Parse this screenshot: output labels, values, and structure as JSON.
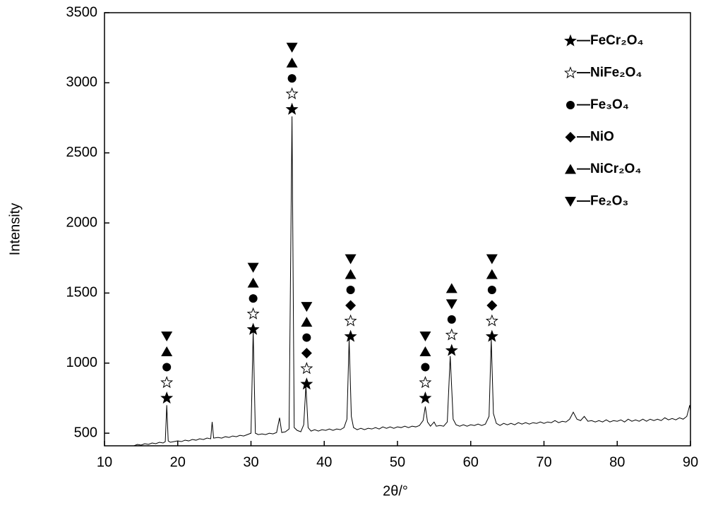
{
  "chart_data": {
    "type": "line",
    "x_label": "2θ/°",
    "y_label": "Intensity",
    "xlim": [
      10,
      90
    ],
    "xticks": [
      10,
      20,
      30,
      40,
      50,
      60,
      70,
      80,
      90
    ],
    "ylim": [
      410,
      3500
    ],
    "yticks": [
      500,
      1000,
      1500,
      2000,
      2500,
      3000,
      3500
    ],
    "color": "#000000",
    "x": [
      14,
      14.5,
      15,
      15.5,
      16,
      16.5,
      17,
      17.5,
      18,
      18.3,
      18.5,
      18.7,
      19,
      19.5,
      20,
      20.5,
      21,
      21.5,
      22,
      22.5,
      23,
      23.5,
      24,
      24.5,
      24.7,
      24.9,
      25.5,
      26,
      26.5,
      27,
      27.5,
      28,
      28.5,
      29,
      29.5,
      30,
      30.3,
      30.6,
      31,
      31.5,
      32,
      32.5,
      33,
      33.5,
      33.9,
      34.2,
      34.7,
      35.2,
      35.6,
      35.9,
      36.3,
      36.8,
      37.2,
      37.5,
      37.8,
      38.2,
      38.7,
      39.2,
      39.7,
      40.2,
      40.7,
      41.2,
      41.7,
      42.2,
      42.7,
      43.1,
      43.4,
      43.7,
      44,
      44.5,
      45,
      45.5,
      46,
      46.5,
      47,
      47.5,
      48,
      48.5,
      49,
      49.5,
      50,
      50.5,
      51,
      51.5,
      52,
      52.5,
      53,
      53.5,
      53.8,
      54.1,
      54.5,
      55,
      55.3,
      55.8,
      56.3,
      56.8,
      57.2,
      57.6,
      58,
      58.5,
      59,
      59.5,
      60,
      60.5,
      61,
      61.5,
      62,
      62.5,
      62.8,
      63.1,
      63.5,
      64,
      64.5,
      65,
      65.5,
      66,
      66.5,
      67,
      67.5,
      68,
      68.5,
      69,
      69.5,
      70,
      70.5,
      71,
      71.5,
      72,
      72.5,
      73,
      73.5,
      74,
      74.5,
      75,
      75.5,
      76,
      76.5,
      77,
      77.5,
      78,
      78.5,
      79,
      79.5,
      80,
      80.5,
      81,
      81.5,
      82,
      82.5,
      83,
      83.5,
      84,
      84.5,
      85,
      85.5,
      86,
      86.5,
      87,
      87.5,
      88,
      88.5,
      89,
      89.5,
      89.9,
      90
    ],
    "values": [
      410,
      420,
      415,
      425,
      420,
      430,
      425,
      435,
      430,
      440,
      700,
      445,
      435,
      440,
      445,
      440,
      450,
      445,
      455,
      450,
      460,
      455,
      465,
      460,
      580,
      465,
      470,
      465,
      475,
      470,
      480,
      475,
      485,
      480,
      490,
      500,
      1230,
      500,
      490,
      495,
      490,
      500,
      495,
      505,
      610,
      505,
      510,
      530,
      2760,
      540,
      520,
      510,
      560,
      840,
      540,
      515,
      525,
      515,
      525,
      520,
      530,
      520,
      530,
      525,
      540,
      600,
      1170,
      620,
      540,
      525,
      535,
      525,
      535,
      530,
      540,
      530,
      545,
      535,
      545,
      535,
      545,
      540,
      550,
      540,
      550,
      545,
      555,
      590,
      690,
      580,
      550,
      580,
      550,
      555,
      550,
      580,
      1050,
      600,
      560,
      550,
      560,
      550,
      560,
      555,
      565,
      555,
      565,
      620,
      1170,
      640,
      570,
      555,
      570,
      560,
      570,
      560,
      575,
      565,
      575,
      565,
      575,
      570,
      580,
      570,
      580,
      575,
      590,
      575,
      585,
      580,
      600,
      650,
      600,
      590,
      620,
      585,
      590,
      580,
      590,
      580,
      595,
      580,
      590,
      585,
      595,
      580,
      600,
      585,
      595,
      585,
      600,
      585,
      600,
      590,
      600,
      590,
      610,
      595,
      605,
      595,
      610,
      600,
      620,
      700,
      660
    ],
    "annotations": [
      {
        "x": 18.5,
        "y": 750,
        "markers": [
          "star",
          "star-open",
          "circle",
          "triangle-up",
          "triangle-down"
        ]
      },
      {
        "x": 30.3,
        "y": 1240,
        "markers": [
          "star",
          "star-open",
          "circle",
          "triangle-up",
          "triangle-down"
        ]
      },
      {
        "x": 35.6,
        "y": 2810,
        "markers": [
          "star",
          "star-open",
          "circle",
          "triangle-up",
          "triangle-down"
        ]
      },
      {
        "x": 37.6,
        "y": 850,
        "markers": [
          "star",
          "star-open",
          "diamond",
          "circle",
          "triangle-up",
          "triangle-down"
        ]
      },
      {
        "x": 43.6,
        "y": 1190,
        "markers": [
          "star",
          "star-open",
          "diamond",
          "circle",
          "triangle-up",
          "triangle-down"
        ]
      },
      {
        "x": 53.8,
        "y": 750,
        "markers": [
          "star",
          "star-open",
          "circle",
          "triangle-up",
          "triangle-down"
        ]
      },
      {
        "x": 57.4,
        "y": 1090,
        "markers": [
          "star",
          "star-open",
          "circle",
          "triangle-down",
          "triangle-up"
        ]
      },
      {
        "x": 62.9,
        "y": 1190,
        "markers": [
          "star",
          "star-open",
          "diamond",
          "circle",
          "triangle-up",
          "triangle-down"
        ]
      }
    ],
    "legend_position": "upper right",
    "legend": [
      {
        "marker": "star",
        "label": "—FeCr₂O₄"
      },
      {
        "marker": "star-open",
        "label": "—NiFe₂O₄"
      },
      {
        "marker": "circle",
        "label": "—Fe₃O₄"
      },
      {
        "marker": "diamond",
        "label": "—NiO"
      },
      {
        "marker": "triangle-up",
        "label": "—NiCr₂O₄"
      },
      {
        "marker": "triangle-down",
        "label": "—Fe₂O₃"
      }
    ]
  }
}
